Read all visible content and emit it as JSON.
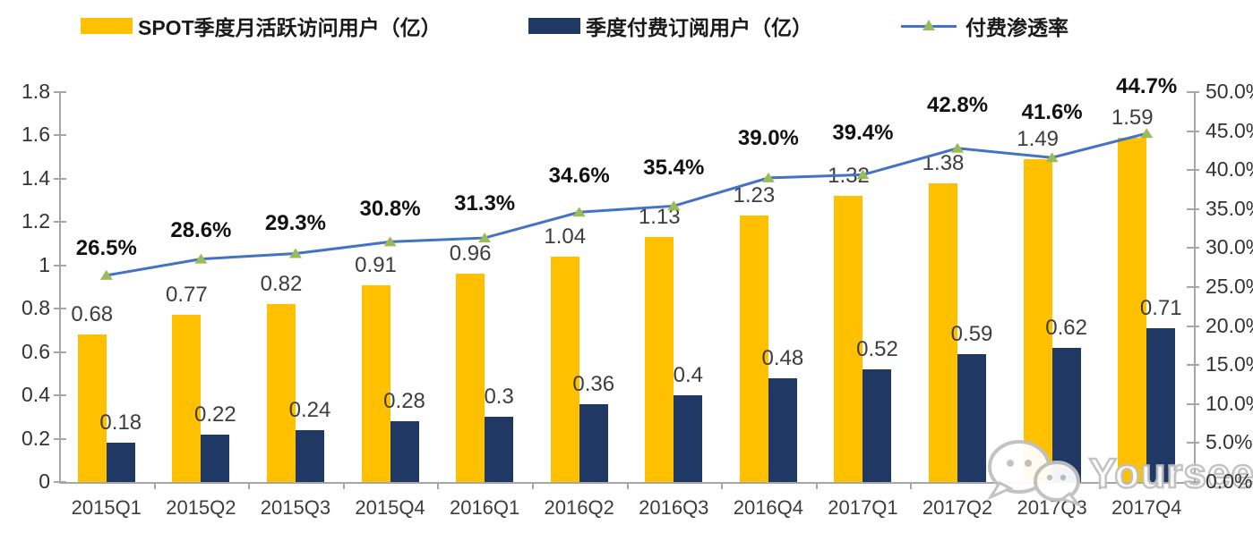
{
  "chart_data": {
    "type": "bar",
    "subtype": "combo-bar-line-dual-axis",
    "categories": [
      "2015Q1",
      "2015Q2",
      "2015Q3",
      "2015Q4",
      "2016Q1",
      "2016Q2",
      "2016Q3",
      "2016Q4",
      "2017Q1",
      "2017Q2",
      "2017Q3",
      "2017Q4"
    ],
    "series": [
      {
        "name": "SPOT季度月活跃访问用户（亿）",
        "type": "bar",
        "axis": "left",
        "values": [
          0.68,
          0.77,
          0.82,
          0.91,
          0.96,
          1.04,
          1.13,
          1.23,
          1.32,
          1.38,
          1.49,
          1.59
        ],
        "labels": [
          "0.68",
          "0.77",
          "0.82",
          "0.91",
          "0.96",
          "1.04",
          "1.13",
          "1.23",
          "1.32",
          "1.38",
          "1.49",
          "1.59"
        ]
      },
      {
        "name": "季度付费订阅用户（亿）",
        "type": "bar",
        "axis": "left",
        "values": [
          0.18,
          0.22,
          0.24,
          0.28,
          0.3,
          0.36,
          0.4,
          0.48,
          0.52,
          0.59,
          0.62,
          0.71
        ],
        "labels": [
          "0.18",
          "0.22",
          "0.24",
          "0.28",
          "0.3",
          "0.36",
          "0.4",
          "0.48",
          "0.52",
          "0.59",
          "0.62",
          "0.71"
        ]
      },
      {
        "name": "付费渗透率",
        "type": "line",
        "axis": "right",
        "values": [
          26.5,
          28.6,
          29.3,
          30.8,
          31.3,
          34.6,
          35.4,
          39.0,
          39.4,
          42.8,
          41.6,
          44.7
        ],
        "labels": [
          "26.5%",
          "28.6%",
          "29.3%",
          "30.8%",
          "31.3%",
          "34.6%",
          "35.4%",
          "39.0%",
          "39.4%",
          "42.8%",
          "41.6%",
          "44.7%"
        ]
      }
    ],
    "left_axis": {
      "min": 0,
      "max": 1.8,
      "ticks": [
        "0",
        "0.2",
        "0.4",
        "0.6",
        "0.8",
        "1",
        "1.2",
        "1.4",
        "1.6",
        "1.8"
      ]
    },
    "right_axis": {
      "min": 0,
      "max": 50,
      "ticks": [
        "0.0%",
        "5.0%",
        "10.0%",
        "15.0%",
        "20.0%",
        "25.0%",
        "30.0%",
        "35.0%",
        "40.0%",
        "45.0%",
        "50.0%"
      ]
    },
    "title": "",
    "xlabel": "",
    "ylabel": "",
    "grid": false,
    "legend_position": "top"
  },
  "colors": {
    "mau_bar": "#FFC000",
    "subs_bar": "#1F3864",
    "penetration_line": "#4472C4",
    "penetration_marker": "#9BBB59",
    "axis": "#a6a6a6",
    "watermark": "#c0c0c0"
  },
  "watermark": {
    "text": "Yourseeker",
    "icon": "wechat-icon"
  }
}
